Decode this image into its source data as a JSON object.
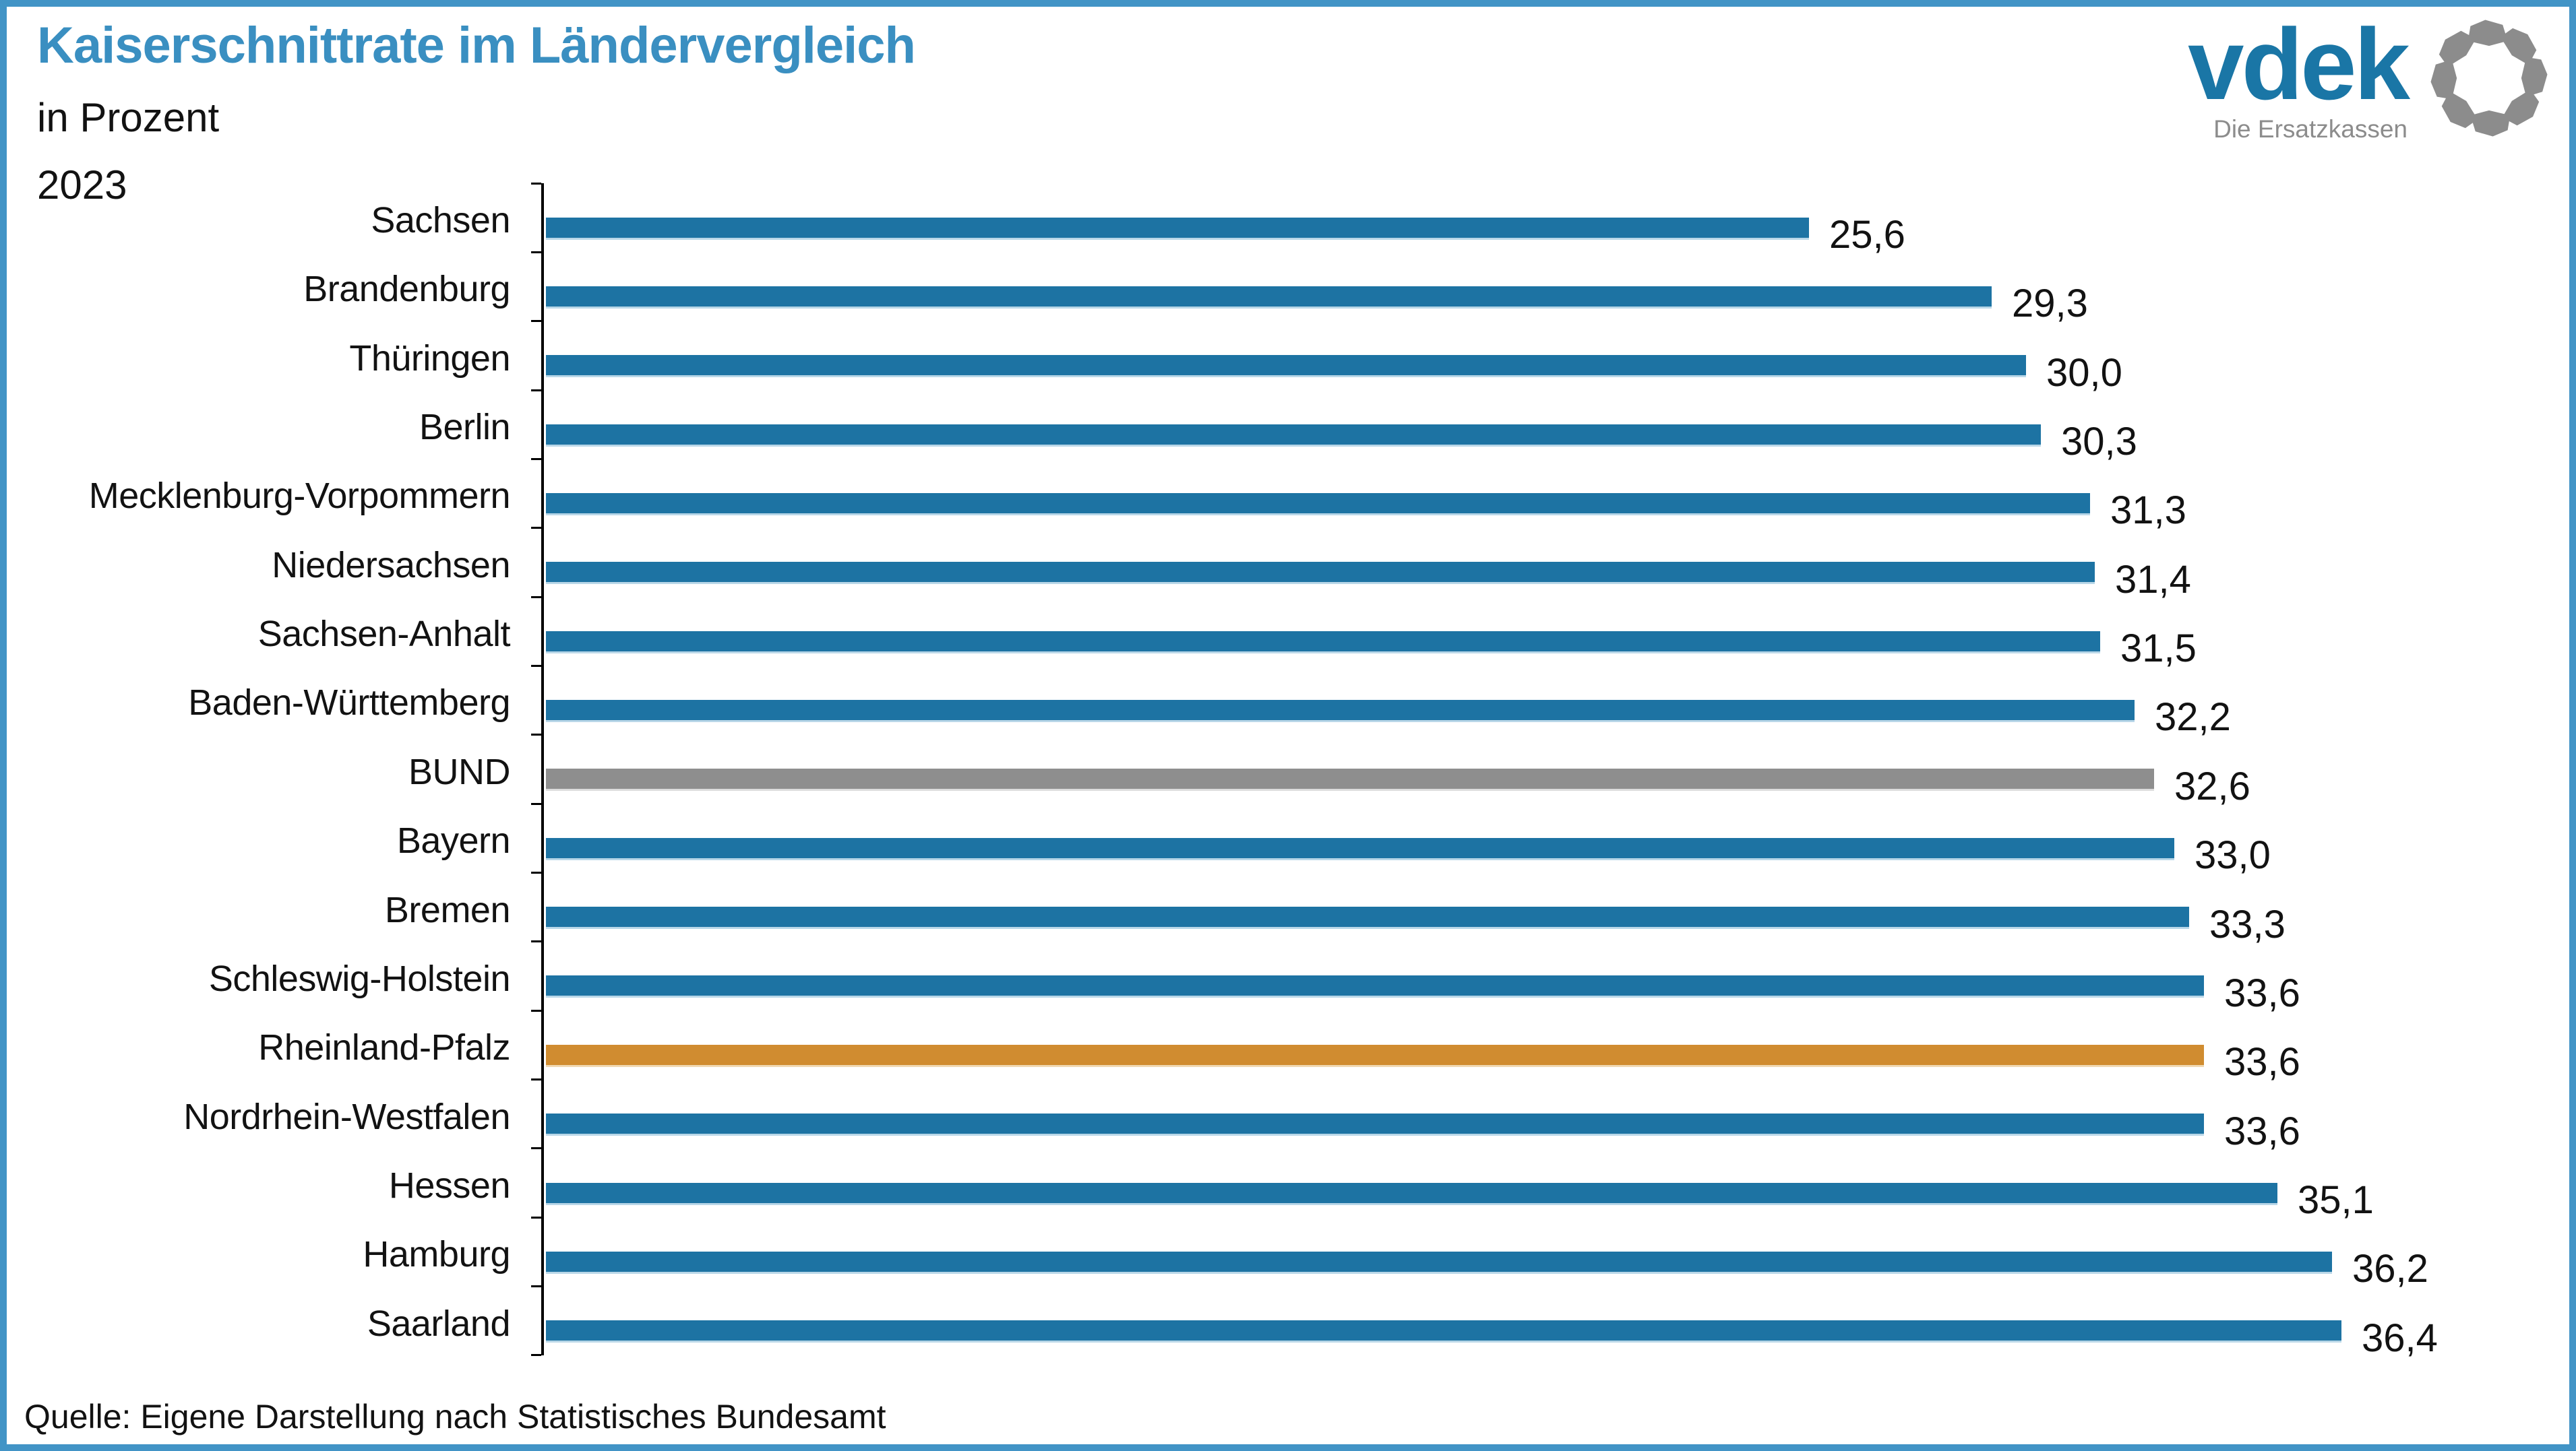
{
  "header": {
    "title": "Kaiserschnittrate im Ländervergleich",
    "subtitle": "in Prozent",
    "year": "2023"
  },
  "logo": {
    "brand": "vdek",
    "tagline": "Die Ersatzkassen"
  },
  "footer": {
    "source": "Quelle: Eigene Darstellung nach Statistisches Bundesamt"
  },
  "colors": {
    "frame_border": "#4294c6",
    "title_blue": "#3a8fc1",
    "bar_blue": "#1d73a3",
    "bar_gray": "#8e8e8e",
    "bar_orange": "#d08c30",
    "bar_blue_edge": "#b9d7e8",
    "bar_gray_edge": "#dcdcdc",
    "bar_orange_edge": "#f0d8b2",
    "logo_blue": "#1a76a6",
    "logo_gray": "#8c8c8c",
    "axis_black": "#000000"
  },
  "chart_data": {
    "type": "bar",
    "orientation": "horizontal",
    "title": "Kaiserschnittrate im Ländervergleich",
    "subtitle": "in Prozent",
    "year": "2023",
    "xlabel": "",
    "ylabel": "",
    "xlim": [
      0,
      38
    ],
    "grid": false,
    "value_labels_shown": true,
    "legend": "none",
    "categories": [
      "Sachsen",
      "Brandenburg",
      "Thüringen",
      "Berlin",
      "Mecklenburg-Vorpommern",
      "Niedersachsen",
      "Sachsen-Anhalt",
      "Baden-Württemberg",
      "BUND",
      "Bayern",
      "Bremen",
      "Schleswig-Holstein",
      "Rheinland-Pfalz",
      "Nordrhein-Westfalen",
      "Hessen",
      "Hamburg",
      "Saarland"
    ],
    "values": [
      25.6,
      29.3,
      30.0,
      30.3,
      31.3,
      31.4,
      31.5,
      32.2,
      32.6,
      33.0,
      33.3,
      33.6,
      33.6,
      33.6,
      35.1,
      36.2,
      36.4
    ],
    "value_labels": [
      "25,6",
      "29,3",
      "30,0",
      "30,3",
      "31,3",
      "31,4",
      "31,5",
      "32,2",
      "32,6",
      "33,0",
      "33,3",
      "33,6",
      "33,6",
      "33,6",
      "35,1",
      "36,2",
      "36,4"
    ],
    "color_keys": [
      "blue",
      "blue",
      "blue",
      "blue",
      "blue",
      "blue",
      "blue",
      "blue",
      "gray",
      "blue",
      "blue",
      "blue",
      "orange",
      "blue",
      "blue",
      "blue",
      "blue"
    ]
  }
}
